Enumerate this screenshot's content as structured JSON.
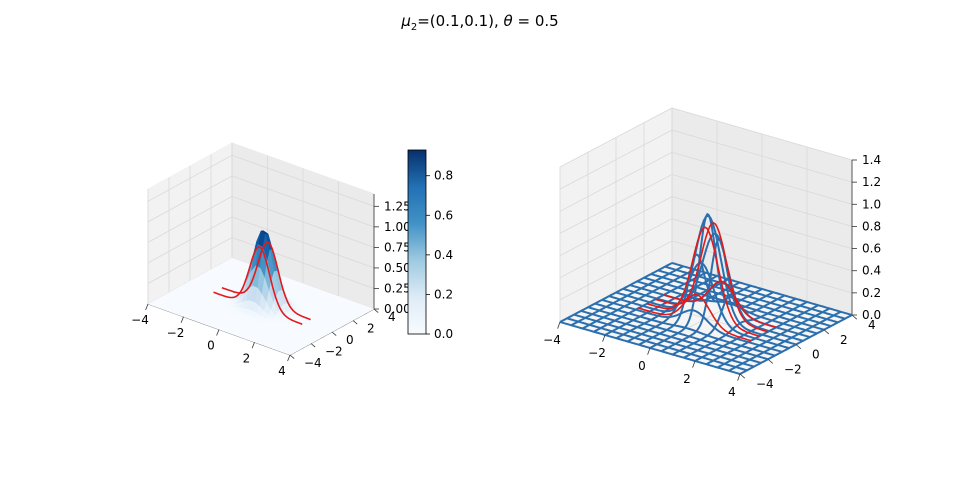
{
  "figure": {
    "title_prefix": "μ",
    "title_sub": "2",
    "title_mid": "=(0.1,0.1), ",
    "title_theta": "θ",
    "title_rest": " = 0.5"
  },
  "chart_data": [
    {
      "type": "surface",
      "panel": "left",
      "colormap": "Blues",
      "x_ticks": [
        "−4",
        "−2",
        "0",
        "2",
        "4"
      ],
      "y_ticks": [
        "−4",
        "−2",
        "0",
        "2",
        "4"
      ],
      "z_ticks": [
        "0.00",
        "0.25",
        "0.50",
        "0.75",
        "1.00",
        "1.25"
      ],
      "xlim": [
        -4,
        4
      ],
      "ylim": [
        -4,
        4
      ],
      "zlim": [
        0,
        1.4
      ],
      "grid": true,
      "peak": 0.95,
      "peak_location": [
        0.1,
        0.1
      ],
      "colorbar": {
        "ticks": [
          "0.0",
          "0.2",
          "0.4",
          "0.6",
          "0.8"
        ],
        "range": [
          0,
          0.93
        ]
      },
      "colors": {
        "surface_light": "#f7fbff",
        "surface_dark": "#08306b",
        "overlay_line": "#e31a1c"
      }
    },
    {
      "type": "wireframe",
      "panel": "right",
      "x_ticks": [
        "−4",
        "−2",
        "0",
        "2",
        "4"
      ],
      "y_ticks": [
        "−4",
        "−2",
        "0",
        "2",
        "4"
      ],
      "z_ticks": [
        "0.0",
        "0.2",
        "0.4",
        "0.6",
        "0.8",
        "1.0",
        "1.2",
        "1.4"
      ],
      "xlim": [
        -4,
        4
      ],
      "ylim": [
        -4,
        4
      ],
      "zlim": [
        0,
        1.4
      ],
      "grid": true,
      "peak": 0.95,
      "peak_location": [
        0.1,
        0.1
      ],
      "colors": {
        "wire": "#2b6fae",
        "overlay_line": "#e31a1c"
      }
    }
  ]
}
